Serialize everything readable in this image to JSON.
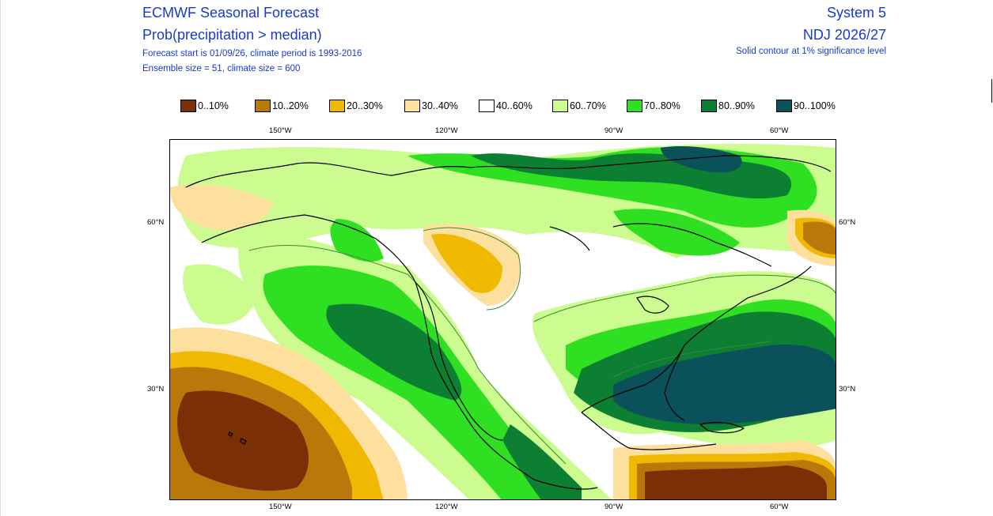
{
  "header": {
    "left_title": "ECMWF Seasonal Forecast",
    "left_subtitle": "Prob(precipitation > median)",
    "left_line1": "Forecast start is 01/09/26, climate period is 1993-2016",
    "left_line2": "Ensemble size = 51, climate size = 600",
    "right_title": "System 5",
    "right_subtitle": "NDJ 2026/27",
    "right_line1": "Solid contour at 1% significance level"
  },
  "legend": [
    {
      "label": "0..10%",
      "color": "#7b2f06"
    },
    {
      "label": "10..20%",
      "color": "#b8780a"
    },
    {
      "label": "20..30%",
      "color": "#f0b800"
    },
    {
      "label": "30..40%",
      "color": "#fddf9e"
    },
    {
      "label": "40..60%",
      "color": "#ffffff"
    },
    {
      "label": "60..70%",
      "color": "#ccfb90"
    },
    {
      "label": "70..80%",
      "color": "#2ee021"
    },
    {
      "label": "80..90%",
      "color": "#0d7f33"
    },
    {
      "label": "90..100%",
      "color": "#0a5159"
    }
  ],
  "axes": {
    "top_lon": [
      "150°W",
      "120°W",
      "90°W",
      "60°W"
    ],
    "bottom_lon": [
      "150°W",
      "120°W",
      "90°W",
      "60°W"
    ],
    "left_lat": [
      "60°N",
      "30°N"
    ],
    "right_lat": [
      "60°N",
      "30°N"
    ]
  }
}
